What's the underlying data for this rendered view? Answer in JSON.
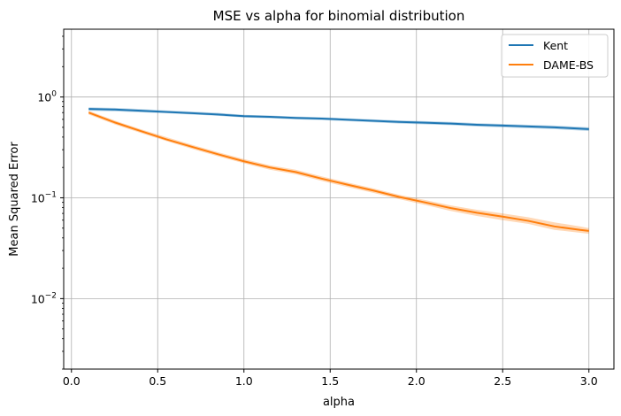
{
  "chart_data": {
    "type": "line",
    "title": "MSE vs alpha for binomial distribution",
    "xlabel": "alpha",
    "ylabel": "Mean Squared Error",
    "xlim": [
      -0.045,
      3.145
    ],
    "ylim": [
      0.002,
      4.7
    ],
    "yscale": "log",
    "grid": true,
    "legend_position": "top-right",
    "xticks": [
      0.0,
      0.5,
      1.0,
      1.5,
      2.0,
      2.5,
      3.0
    ],
    "xtick_labels": [
      "0.0",
      "0.5",
      "1.0",
      "1.5",
      "2.0",
      "2.5",
      "3.0"
    ],
    "yticks": [
      0.01,
      0.1,
      1
    ],
    "x": [
      0.1,
      0.25,
      0.4,
      0.55,
      0.7,
      0.85,
      1.0,
      1.15,
      1.3,
      1.45,
      1.6,
      1.75,
      1.9,
      2.05,
      2.2,
      2.35,
      2.5,
      2.65,
      2.8,
      2.95,
      3.0
    ],
    "series": [
      {
        "name": "Kent",
        "color": "#1f77b4",
        "values": [
          0.76,
          0.75,
          0.73,
          0.71,
          0.69,
          0.67,
          0.645,
          0.635,
          0.62,
          0.61,
          0.595,
          0.58,
          0.565,
          0.555,
          0.545,
          0.53,
          0.52,
          0.51,
          0.5,
          0.485,
          0.48
        ],
        "band_lower": [
          0.73,
          0.72,
          0.705,
          0.69,
          0.67,
          0.65,
          0.625,
          0.615,
          0.6,
          0.59,
          0.575,
          0.56,
          0.545,
          0.535,
          0.525,
          0.51,
          0.5,
          0.49,
          0.48,
          0.465,
          0.46
        ],
        "band_upper": [
          0.79,
          0.78,
          0.76,
          0.735,
          0.715,
          0.695,
          0.665,
          0.655,
          0.64,
          0.63,
          0.615,
          0.6,
          0.585,
          0.575,
          0.565,
          0.55,
          0.54,
          0.53,
          0.52,
          0.505,
          0.5
        ]
      },
      {
        "name": "DAME-BS",
        "color": "#ff7f0e",
        "values": [
          0.7,
          0.56,
          0.46,
          0.38,
          0.32,
          0.27,
          0.23,
          0.2,
          0.18,
          0.155,
          0.135,
          0.118,
          0.102,
          0.09,
          0.079,
          0.071,
          0.065,
          0.059,
          0.052,
          0.048,
          0.047
        ],
        "band_lower": [
          0.67,
          0.535,
          0.44,
          0.365,
          0.305,
          0.258,
          0.22,
          0.19,
          0.171,
          0.147,
          0.128,
          0.112,
          0.097,
          0.085,
          0.074,
          0.066,
          0.06,
          0.055,
          0.048,
          0.045,
          0.044
        ],
        "band_upper": [
          0.73,
          0.585,
          0.48,
          0.4,
          0.335,
          0.283,
          0.242,
          0.21,
          0.19,
          0.163,
          0.142,
          0.124,
          0.107,
          0.095,
          0.084,
          0.076,
          0.07,
          0.064,
          0.057,
          0.052,
          0.05
        ]
      }
    ]
  }
}
